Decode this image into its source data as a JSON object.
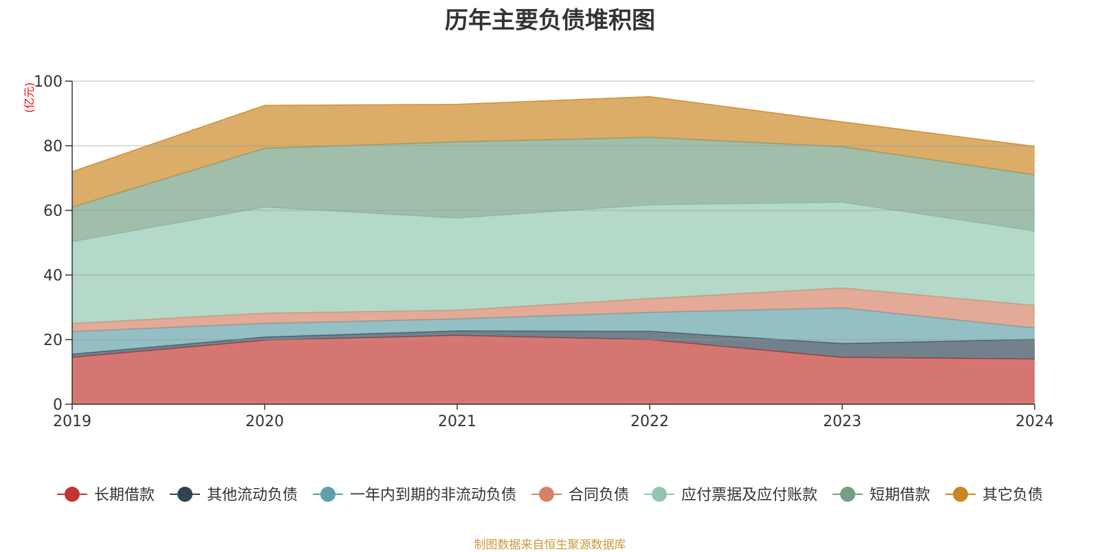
{
  "chart_data": {
    "type": "area",
    "stacked": true,
    "title": "历年主要负债堆积图",
    "ylabel": "(亿元)",
    "xlabel": "",
    "ylim": [
      0,
      100
    ],
    "yticks": [
      0,
      20,
      40,
      60,
      80,
      100
    ],
    "categories": [
      "2019",
      "2020",
      "2021",
      "2022",
      "2023",
      "2024"
    ],
    "grid": true,
    "legend_position": "bottom",
    "series": [
      {
        "name": "长期借款",
        "color": "#c23531",
        "values": [
          14.5,
          19.8,
          21.3,
          20.0,
          14.5,
          14.0
        ]
      },
      {
        "name": "其他流动负债",
        "color": "#2f4554",
        "values": [
          1.0,
          1.0,
          1.4,
          2.6,
          4.3,
          6.1
        ]
      },
      {
        "name": "一年内到期的非流动负债",
        "color": "#61a0a8",
        "values": [
          7.0,
          4.2,
          3.7,
          5.8,
          11.0,
          3.5
        ]
      },
      {
        "name": "合同负债",
        "color": "#d48265",
        "values": [
          2.5,
          3.2,
          2.7,
          4.3,
          6.2,
          7.0
        ]
      },
      {
        "name": "应付票据及应付账款",
        "color": "#91c7ae",
        "values": [
          25.3,
          32.8,
          28.5,
          29.0,
          26.5,
          23.0
        ]
      },
      {
        "name": "短期借款",
        "color": "#749f83",
        "values": [
          10.7,
          18.2,
          23.6,
          20.9,
          17.2,
          17.4
        ]
      },
      {
        "name": "其它负债",
        "color": "#ca8622",
        "values": [
          11.0,
          13.3,
          11.6,
          12.6,
          7.7,
          8.8
        ]
      }
    ]
  },
  "footer": {
    "source_note": "制图数据来自恒生聚源数据库"
  }
}
